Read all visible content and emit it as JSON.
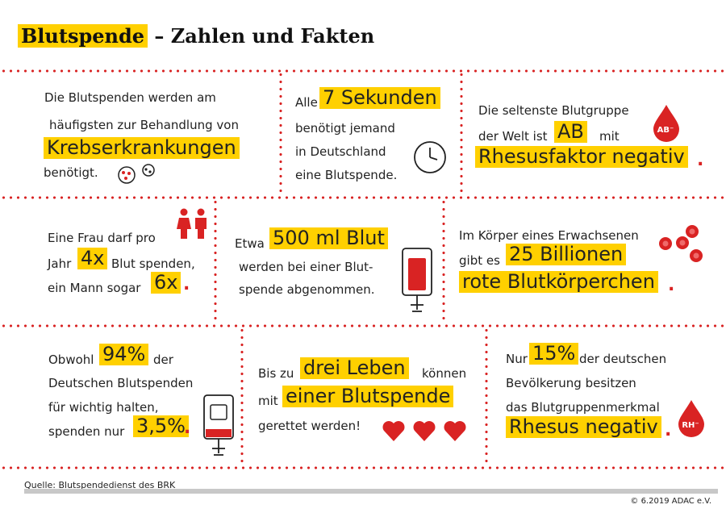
{
  "header": {
    "title_highlight": "Blutspende",
    "title_rest": " – Zahlen und Fakten"
  },
  "cells": {
    "c1": {
      "l1": "Die Blutspenden werden am",
      "l2": "häufigsten zur Behandlung von",
      "big": "Krebserkrankungen",
      "l4": "benötigt."
    },
    "c2": {
      "pre": "Alle",
      "big": "7 Sekunden",
      "l2": "benötigt jemand",
      "l3": "in Deutschland",
      "l4": "eine Blutspende."
    },
    "c3": {
      "l1": "Die seltenste Blutgruppe",
      "l2a": "der Welt ist",
      "big1": "AB",
      "l2b": "mit",
      "big2": "Rhesusfaktor negativ",
      "dot": ".",
      "badge": "AB⁻"
    },
    "c4": {
      "l1": "Eine Frau darf pro",
      "l2a": "Jahr",
      "big1": "4x",
      "l2b": "Blut spenden,",
      "l3a": "ein Mann sogar",
      "big2": "6x",
      "dot": "."
    },
    "c5": {
      "pre": "Etwa",
      "big": "500 ml Blut",
      "l2": "werden bei einer Blut-",
      "l3": "spende abgenommen."
    },
    "c6": {
      "l1": "Im Körper eines Erwachsenen",
      "l2a": "gibt es",
      "big1": "25 Billionen",
      "big2": "rote Blutkörperchen",
      "dot": "."
    },
    "c7": {
      "pre": "Obwohl",
      "big1": "94%",
      "l1b": "der",
      "l2": "Deutschen Blutspenden",
      "l3": "für wichtig halten,",
      "l4a": "spenden nur",
      "big2": "3,5%",
      "dot": "."
    },
    "c8": {
      "l1a": "Bis zu",
      "big1": "drei Leben",
      "l1b": "können",
      "l2a": "mit",
      "big2": "einer Blutspende",
      "l3": "gerettet werden!"
    },
    "c9": {
      "pre": "Nur",
      "big1": "15%",
      "l1b": "der deutschen",
      "l2": "Bevölkerung besitzen",
      "l3": "das Blutgruppenmerkmal",
      "big2": "Rhesus negativ",
      "dot": ".",
      "badge": "RH⁻"
    }
  },
  "footer": {
    "source": "Quelle: Blutspendedienst des BRK",
    "copyright": "© 6.2019 ADAC e.V."
  },
  "colors": {
    "accent": "#ffd000",
    "red": "#d92323",
    "bar": "#c8c8c8"
  },
  "icons": [
    "cells-icon",
    "clock-icon",
    "blood-drop-icon",
    "woman-man-icon",
    "blood-bag-icon",
    "blood-cells-icon",
    "heart-icon"
  ]
}
